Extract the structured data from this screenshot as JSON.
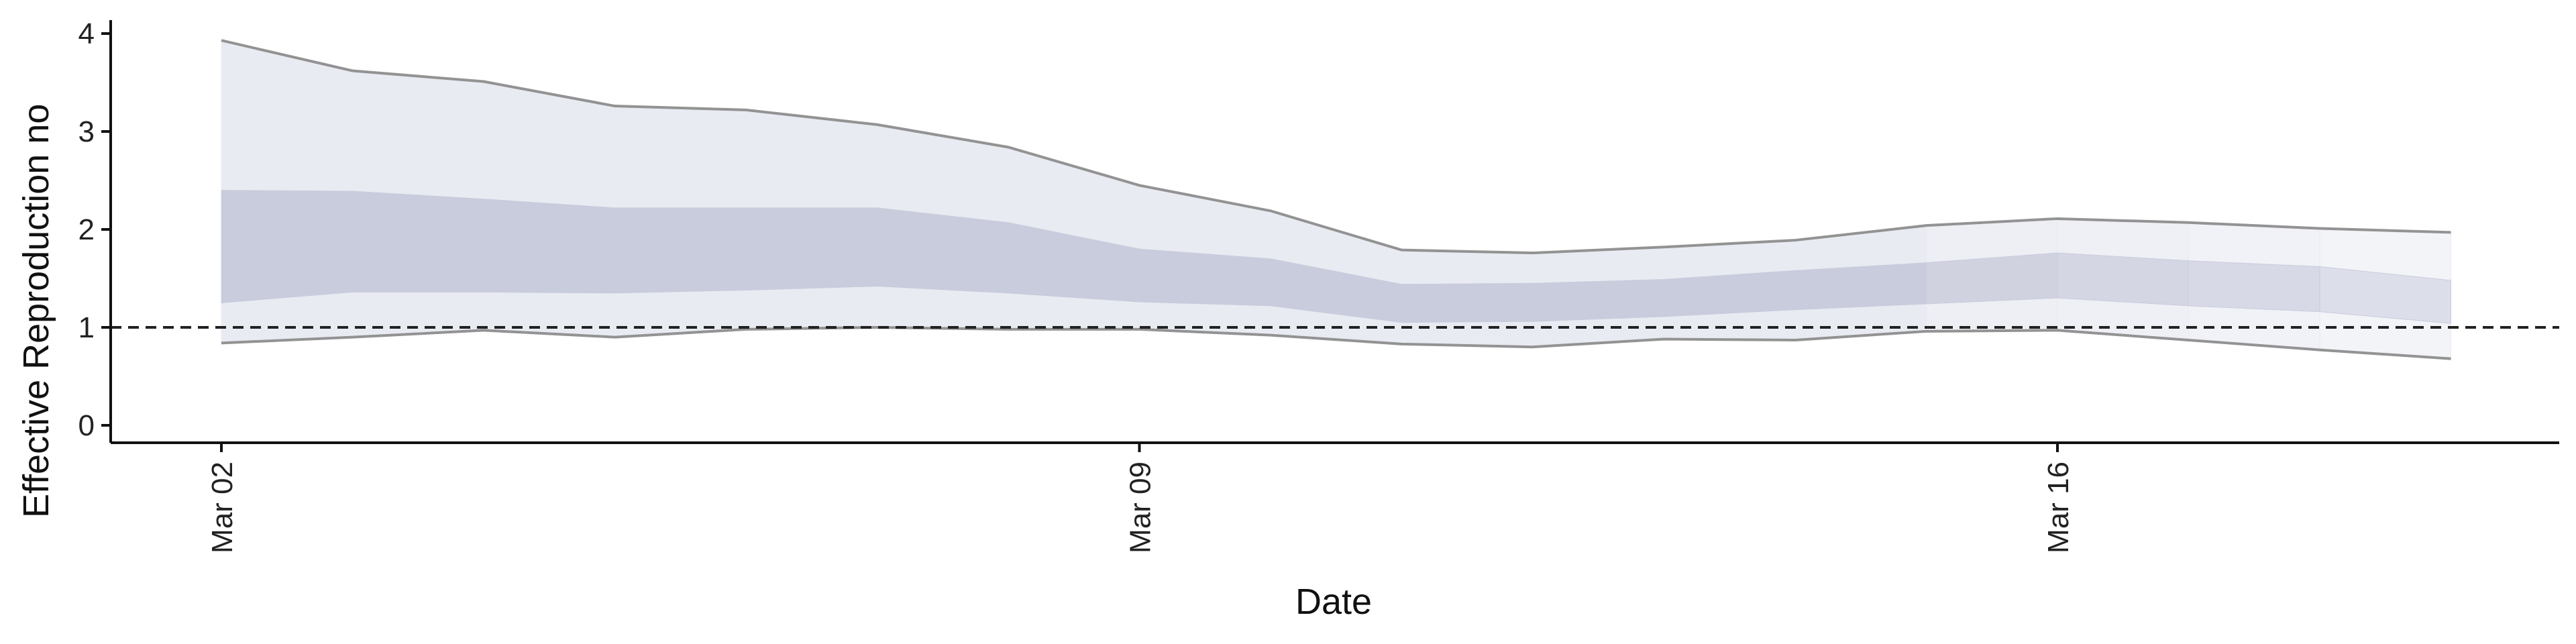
{
  "chart_data": {
    "type": "area",
    "xlabel": "Date",
    "ylabel": "Effective Reproduction no",
    "x": [
      "Mar 02",
      "Mar 03",
      "Mar 04",
      "Mar 05",
      "Mar 06",
      "Mar 07",
      "Mar 08",
      "Mar 09",
      "Mar 10",
      "Mar 11",
      "Mar 12",
      "Mar 13",
      "Mar 14",
      "Mar 15",
      "Mar 16",
      "Mar 17",
      "Mar 18",
      "Mar 19"
    ],
    "x_ticks": [
      "Mar 02",
      "Mar 09",
      "Mar 16"
    ],
    "y_ticks": [
      "0",
      "1",
      "2",
      "3",
      "4"
    ],
    "ylim": [
      -0.15,
      4.15
    ],
    "reference_line": {
      "y": 1,
      "style": "dashed"
    },
    "grid": false,
    "series": [
      {
        "band": "outer",
        "upper": [
          3.93,
          3.62,
          3.51,
          3.26,
          3.22,
          3.07,
          2.84,
          2.45,
          2.19,
          1.79,
          1.76,
          1.82,
          1.89,
          2.04,
          2.11,
          2.07,
          2.01,
          1.97
        ],
        "lower": [
          0.84,
          0.9,
          0.97,
          0.9,
          0.98,
          1.0,
          0.98,
          0.98,
          0.92,
          0.83,
          0.8,
          0.88,
          0.87,
          0.96,
          0.97,
          0.87,
          0.77,
          0.68
        ]
      },
      {
        "band": "inner",
        "upper": [
          2.4,
          2.39,
          2.31,
          2.22,
          2.22,
          2.22,
          2.07,
          1.8,
          1.7,
          1.44,
          1.45,
          1.49,
          1.58,
          1.66,
          1.76,
          1.68,
          1.62,
          1.48
        ],
        "lower": [
          1.25,
          1.36,
          1.36,
          1.35,
          1.38,
          1.42,
          1.35,
          1.26,
          1.22,
          1.05,
          1.06,
          1.11,
          1.18,
          1.24,
          1.3,
          1.22,
          1.16,
          1.04
        ]
      }
    ],
    "colors": {
      "outer_band": "#e9ebf2",
      "inner_band": "#c9ccdc",
      "bound_line": "#888888",
      "reference": "#222222"
    }
  }
}
